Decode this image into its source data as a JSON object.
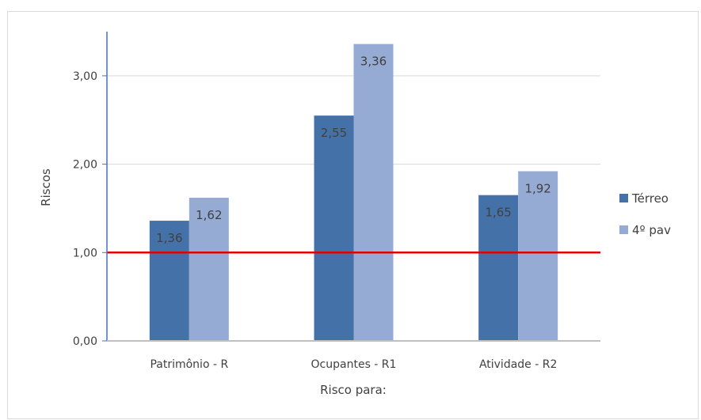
{
  "chart_data": {
    "type": "bar",
    "title": "",
    "xlabel": "Risco para:",
    "ylabel": "Riscos",
    "ylim": [
      0,
      3.5
    ],
    "yticks": [
      "0,00",
      "1,00",
      "2,00",
      "3,00"
    ],
    "ytick_values": [
      0,
      1,
      2,
      3
    ],
    "grid": true,
    "legend_position": "right",
    "categories": [
      "Patrimônio - R",
      "Ocupantes - R1",
      "Atividade - R2"
    ],
    "series": [
      {
        "name": "Térreo",
        "values": [
          1.36,
          2.55,
          1.65
        ],
        "labels": [
          "1,36",
          "2,55",
          "1,65"
        ],
        "color": "#4472a8"
      },
      {
        "name": "4º pav",
        "values": [
          1.62,
          3.36,
          1.92
        ],
        "labels": [
          "1,62",
          "3,36",
          "1,92"
        ],
        "color": "#95abd4"
      }
    ],
    "reference_line": {
      "value": 1.0,
      "color": "#e00000"
    },
    "axis_color": "#4472c4",
    "grid_color": "#d9d9d9"
  }
}
